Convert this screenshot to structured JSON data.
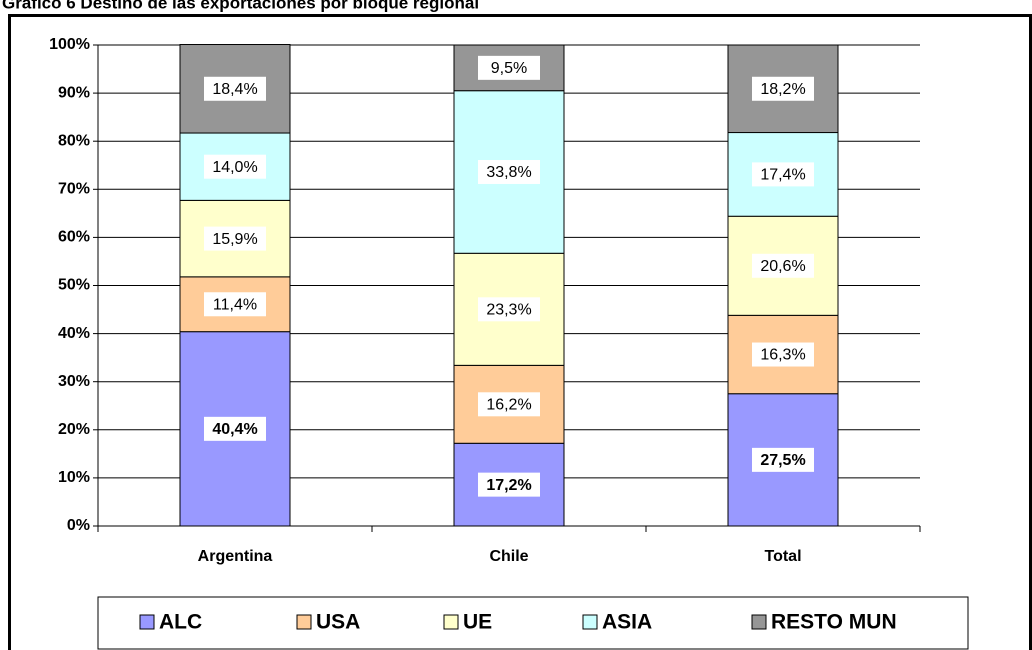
{
  "chart_data": {
    "type": "stacked_bar",
    "title": "Gráfico 6 Destino de las exportaciones por bloque regional",
    "categories": [
      "Argentina",
      "Chile",
      "Total"
    ],
    "series": [
      {
        "name": "ALC",
        "color": "#9999ff",
        "values": [
          40.4,
          17.2,
          27.5
        ],
        "value_labels": [
          "40,4%",
          "17,2%",
          "27,5%"
        ]
      },
      {
        "name": "USA",
        "color": "#ffcc99",
        "values": [
          11.4,
          16.2,
          16.3
        ],
        "value_labels": [
          "11,4%",
          "16,2%",
          "16,3%"
        ]
      },
      {
        "name": "UE",
        "color": "#ffffcc",
        "values": [
          15.9,
          23.3,
          20.6
        ],
        "value_labels": [
          "15,9%",
          "23,3%",
          "20,6%"
        ]
      },
      {
        "name": "ASIA",
        "color": "#ccffff",
        "values": [
          14.0,
          33.8,
          17.4
        ],
        "value_labels": [
          "14,0%",
          "33,8%",
          "17,4%"
        ]
      },
      {
        "name": "RESTO MUN",
        "color": "#969696",
        "values": [
          18.4,
          9.5,
          18.2
        ],
        "value_labels": [
          "18,4%",
          "9,5%",
          "18,2%"
        ]
      }
    ],
    "ylim": [
      0,
      100
    ],
    "yticks": [
      {
        "value": 0,
        "label": "0%"
      },
      {
        "value": 10,
        "label": "10%"
      },
      {
        "value": 20,
        "label": "20%"
      },
      {
        "value": 30,
        "label": "30%"
      },
      {
        "value": 40,
        "label": "40%"
      },
      {
        "value": 50,
        "label": "50%"
      },
      {
        "value": 60,
        "label": "60%"
      },
      {
        "value": 70,
        "label": "70%"
      },
      {
        "value": 80,
        "label": "80%"
      },
      {
        "value": 90,
        "label": "90%"
      },
      {
        "value": 100,
        "label": "100%"
      }
    ],
    "grid": true,
    "legend": "bottom"
  }
}
